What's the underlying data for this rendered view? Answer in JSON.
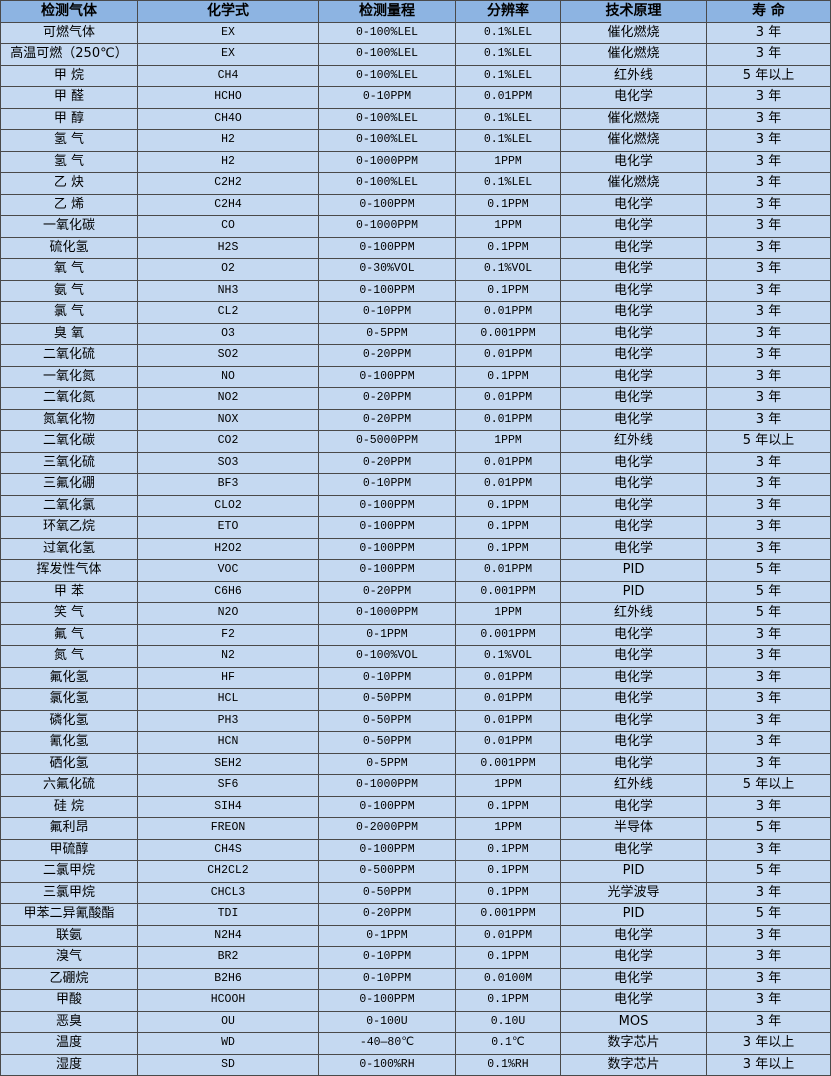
{
  "colors": {
    "header_bg": "#8db4e2",
    "row_bg": "#c5d9f1",
    "border": "#4a4a4a"
  },
  "table": {
    "headers": [
      "检测气体",
      "化学式",
      "检测量程",
      "分辨率",
      "技术原理",
      "寿 命"
    ],
    "rows": [
      [
        "可燃气体",
        "EX",
        "0-100%LEL",
        "0.1%LEL",
        "催化燃烧",
        "3 年"
      ],
      [
        "高温可燃（250℃）",
        "EX",
        "0-100%LEL",
        "0.1%LEL",
        "催化燃烧",
        "3 年"
      ],
      [
        "甲 烷",
        "CH4",
        "0-100%LEL",
        "0.1%LEL",
        "红外线",
        "5 年以上"
      ],
      [
        "甲 醛",
        "HCHO",
        "0-10PPM",
        "0.01PPM",
        "电化学",
        "3 年"
      ],
      [
        "甲 醇",
        "CH4O",
        "0-100%LEL",
        "0.1%LEL",
        "催化燃烧",
        "3 年"
      ],
      [
        "氢 气",
        "H2",
        "0-100%LEL",
        "0.1%LEL",
        "催化燃烧",
        "3 年"
      ],
      [
        "氢 气",
        "H2",
        "0-1000PPM",
        "1PPM",
        "电化学",
        "3 年"
      ],
      [
        "乙 炔",
        "C2H2",
        "0-100%LEL",
        "0.1%LEL",
        "催化燃烧",
        "3 年"
      ],
      [
        "乙 烯",
        "C2H4",
        "0-100PPM",
        "0.1PPM",
        "电化学",
        "3 年"
      ],
      [
        "一氧化碳",
        "CO",
        "0-1000PPM",
        "1PPM",
        "电化学",
        "3 年"
      ],
      [
        "硫化氢",
        "H2S",
        "0-100PPM",
        "0.1PPM",
        "电化学",
        "3 年"
      ],
      [
        "氧 气",
        "O2",
        "0-30%VOL",
        "0.1%VOL",
        "电化学",
        "3 年"
      ],
      [
        "氨 气",
        "NH3",
        "0-100PPM",
        "0.1PPM",
        "电化学",
        "3 年"
      ],
      [
        "氯 气",
        "CL2",
        "0-10PPM",
        "0.01PPM",
        "电化学",
        "3 年"
      ],
      [
        "臭 氧",
        "O3",
        "0-5PPM",
        "0.001PPM",
        "电化学",
        "3 年"
      ],
      [
        "二氧化硫",
        "SO2",
        "0-20PPM",
        "0.01PPM",
        "电化学",
        "3 年"
      ],
      [
        "一氧化氮",
        "NO",
        "0-100PPM",
        "0.1PPM",
        "电化学",
        "3 年"
      ],
      [
        "二氧化氮",
        "NO2",
        "0-20PPM",
        "0.01PPM",
        "电化学",
        "3 年"
      ],
      [
        "氮氧化物",
        "NOX",
        "0-20PPM",
        "0.01PPM",
        "电化学",
        "3 年"
      ],
      [
        "二氧化碳",
        "CO2",
        "0-5000PPM",
        "1PPM",
        "红外线",
        "5 年以上"
      ],
      [
        "三氧化硫",
        "SO3",
        "0-20PPM",
        "0.01PPM",
        "电化学",
        "3 年"
      ],
      [
        "三氟化硼",
        "BF3",
        "0-10PPM",
        "0.01PPM",
        "电化学",
        "3 年"
      ],
      [
        "二氧化氯",
        "CLO2",
        "0-100PPM",
        "0.1PPM",
        "电化学",
        "3 年"
      ],
      [
        "环氧乙烷",
        "ETO",
        "0-100PPM",
        "0.1PPM",
        "电化学",
        "3 年"
      ],
      [
        "过氧化氢",
        "H2O2",
        "0-100PPM",
        "0.1PPM",
        "电化学",
        "3 年"
      ],
      [
        "挥发性气体",
        "VOC",
        "0-100PPM",
        "0.01PPM",
        "PID",
        "5 年"
      ],
      [
        "甲 苯",
        "C6H6",
        "0-20PPM",
        "0.001PPM",
        "PID",
        "5 年"
      ],
      [
        "笑 气",
        "N2O",
        "0-1000PPM",
        "1PPM",
        "红外线",
        "5 年"
      ],
      [
        "氟 气",
        "F2",
        "0-1PPM",
        "0.001PPM",
        "电化学",
        "3 年"
      ],
      [
        "氮 气",
        "N2",
        "0-100%VOL",
        "0.1%VOL",
        "电化学",
        "3 年"
      ],
      [
        "氟化氢",
        "HF",
        "0-10PPM",
        "0.01PPM",
        "电化学",
        "3 年"
      ],
      [
        "氯化氢",
        "HCL",
        "0-50PPM",
        "0.01PPM",
        "电化学",
        "3 年"
      ],
      [
        "磷化氢",
        "PH3",
        "0-50PPM",
        "0.01PPM",
        "电化学",
        "3 年"
      ],
      [
        "氰化氢",
        "HCN",
        "0-50PPM",
        "0.01PPM",
        "电化学",
        "3 年"
      ],
      [
        "硒化氢",
        "SEH2",
        "0-5PPM",
        "0.001PPM",
        "电化学",
        "3 年"
      ],
      [
        "六氟化硫",
        "SF6",
        "0-1000PPM",
        "1PPM",
        "红外线",
        "5 年以上"
      ],
      [
        "硅 烷",
        "SIH4",
        "0-100PPM",
        "0.1PPM",
        "电化学",
        "3 年"
      ],
      [
        "氟利昂",
        "FREON",
        "0-2000PPM",
        "1PPM",
        "半导体",
        "5 年"
      ],
      [
        "甲硫醇",
        "CH4S",
        "0-100PPM",
        "0.1PPM",
        "电化学",
        "3 年"
      ],
      [
        "二氯甲烷",
        "CH2CL2",
        "0-500PPM",
        "0.1PPM",
        "PID",
        "5 年"
      ],
      [
        "三氯甲烷",
        "CHCL3",
        "0-50PPM",
        "0.1PPM",
        "光学波导",
        "3 年"
      ],
      [
        "甲苯二异氰酸酯",
        "TDI",
        "0-20PPM",
        "0.001PPM",
        "PID",
        "5 年"
      ],
      [
        "联氨",
        "N2H4",
        "0-1PPM",
        "0.01PPM",
        "电化学",
        "3 年"
      ],
      [
        "溴气",
        "BR2",
        "0-10PPM",
        "0.1PPM",
        "电化学",
        "3 年"
      ],
      [
        "乙硼烷",
        "B2H6",
        "0-10PPM",
        "0.0100M",
        "电化学",
        "3 年"
      ],
      [
        "甲酸",
        "HCOOH",
        "0-100PPM",
        "0.1PPM",
        "电化学",
        "3 年"
      ],
      [
        "恶臭",
        "OU",
        "0-100U",
        "0.10U",
        "MOS",
        "3 年"
      ],
      [
        "温度",
        "WD",
        "-40—80℃",
        "0.1℃",
        "数字芯片",
        "3 年以上"
      ],
      [
        "湿度",
        "SD",
        "0-100%RH",
        "0.1%RH",
        "数字芯片",
        "3 年以上"
      ]
    ]
  }
}
